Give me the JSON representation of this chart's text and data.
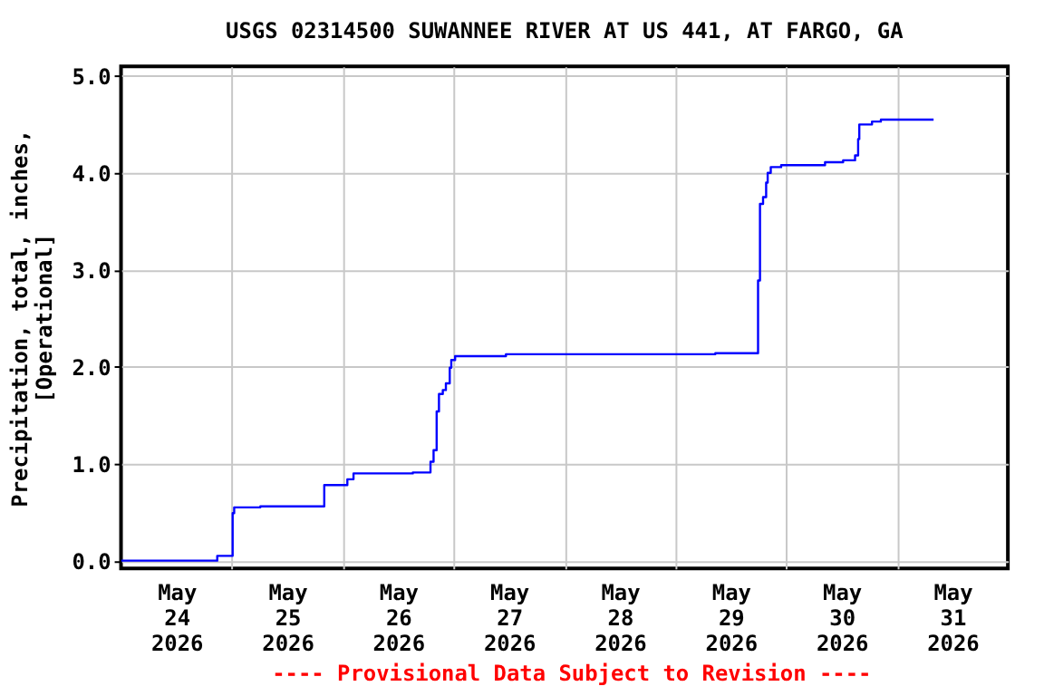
{
  "chart_data": {
    "type": "step",
    "title": "USGS 02314500 SUWANNEE RIVER AT US 441, AT FARGO, GA",
    "ylabel": "Precipitation, total, inches,\n[Operational]",
    "annotations": [
      "---- Provisional Data Subject to Revision ----"
    ],
    "x": [
      "2026-05-24T00:00",
      "2026-05-24T20:50",
      "2026-05-25T00:10",
      "2026-05-25T00:30",
      "2026-05-25T06:10",
      "2026-05-25T20:00",
      "2026-05-26T01:00",
      "2026-05-26T02:20",
      "2026-05-26T15:10",
      "2026-05-26T19:00",
      "2026-05-26T19:40",
      "2026-05-26T20:20",
      "2026-05-26T20:50",
      "2026-05-26T21:40",
      "2026-05-26T22:20",
      "2026-05-26T23:10",
      "2026-05-26T23:30",
      "2026-05-27T00:20",
      "2026-05-27T11:20",
      "2026-05-29T08:40",
      "2026-05-29T17:55",
      "2026-05-29T18:20",
      "2026-05-29T19:00",
      "2026-05-29T19:40",
      "2026-05-29T20:00",
      "2026-05-29T20:40",
      "2026-05-29T22:55",
      "2026-05-30T08:25",
      "2026-05-30T12:20",
      "2026-05-30T14:55",
      "2026-05-30T15:35",
      "2026-05-30T15:50",
      "2026-05-30T18:35",
      "2026-05-30T20:30",
      "2026-05-31T07:55"
    ],
    "series": [
      {
        "color": "#0000ff",
        "values": [
          0.0,
          0.05,
          0.49,
          0.55,
          0.56,
          0.78,
          0.84,
          0.9,
          0.91,
          1.02,
          1.14,
          1.54,
          1.72,
          1.76,
          1.83,
          1.99,
          2.07,
          2.11,
          2.13,
          2.14,
          2.89,
          3.68,
          3.75,
          3.9,
          4.0,
          4.06,
          4.08,
          4.11,
          4.13,
          4.18,
          4.35,
          4.5,
          4.53,
          4.55,
          4.55
        ]
      }
    ],
    "xlim": [
      "2026-05-24T00:00",
      "2026-06-01T00:00"
    ],
    "xticks": [
      {
        "value": "2026-05-24T12:00",
        "label": "May\n24\n2026"
      },
      {
        "value": "2026-05-25T00:00",
        "label": null
      },
      {
        "value": "2026-05-25T12:00",
        "label": "May\n25\n2026"
      },
      {
        "value": "2026-05-26T00:00",
        "label": null
      },
      {
        "value": "2026-05-26T12:00",
        "label": "May\n26\n2026"
      },
      {
        "value": "2026-05-27T00:00",
        "label": null
      },
      {
        "value": "2026-05-27T12:00",
        "label": "May\n27\n2026"
      },
      {
        "value": "2026-05-28T00:00",
        "label": null
      },
      {
        "value": "2026-05-28T12:00",
        "label": "May\n28\n2026"
      },
      {
        "value": "2026-05-29T00:00",
        "label": null
      },
      {
        "value": "2026-05-29T12:00",
        "label": "May\n29\n2026"
      },
      {
        "value": "2026-05-30T00:00",
        "label": null
      },
      {
        "value": "2026-05-30T12:00",
        "label": "May\n30\n2026"
      },
      {
        "value": "2026-05-31T00:00",
        "label": null
      },
      {
        "value": "2026-05-31T12:00",
        "label": "May\n31\n2026"
      }
    ],
    "ylim": [
      -0.08,
      5.1
    ],
    "yticks": [
      {
        "value": 0,
        "label": "0.0"
      },
      {
        "value": 1,
        "label": "1.0"
      },
      {
        "value": 2,
        "label": "2.0"
      },
      {
        "value": 3,
        "label": "3.0"
      },
      {
        "value": 4,
        "label": "4.0"
      },
      {
        "value": 5,
        "label": "5.0"
      }
    ],
    "grid": true,
    "marker": "none",
    "line_style": "solid"
  }
}
